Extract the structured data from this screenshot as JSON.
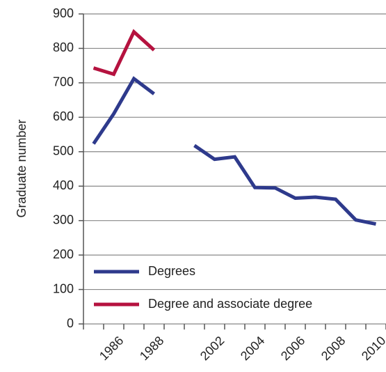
{
  "chart_data": {
    "type": "line",
    "y_label": "Graduate number",
    "categories": [
      null,
      "1986",
      null,
      "1988",
      null,
      null,
      "2002",
      null,
      "2004",
      null,
      "2006",
      null,
      "2008",
      null,
      "2010"
    ],
    "series": [
      {
        "name": "Degrees",
        "color": "#2e3a8c",
        "values": [
          523,
          610,
          712,
          668,
          null,
          518,
          478,
          485,
          396,
          395,
          365,
          368,
          362,
          302,
          290
        ]
      },
      {
        "name": "Degree and associate degree",
        "color": "#b5123f",
        "values": [
          743,
          725,
          848,
          795,
          null,
          null,
          null,
          null,
          null,
          null,
          null,
          null,
          null,
          null,
          null
        ]
      }
    ],
    "ylim": [
      0,
      900
    ],
    "yticks": [
      0,
      100,
      200,
      300,
      400,
      500,
      600,
      700,
      800,
      900
    ],
    "grid": true,
    "legend": "lower left"
  }
}
